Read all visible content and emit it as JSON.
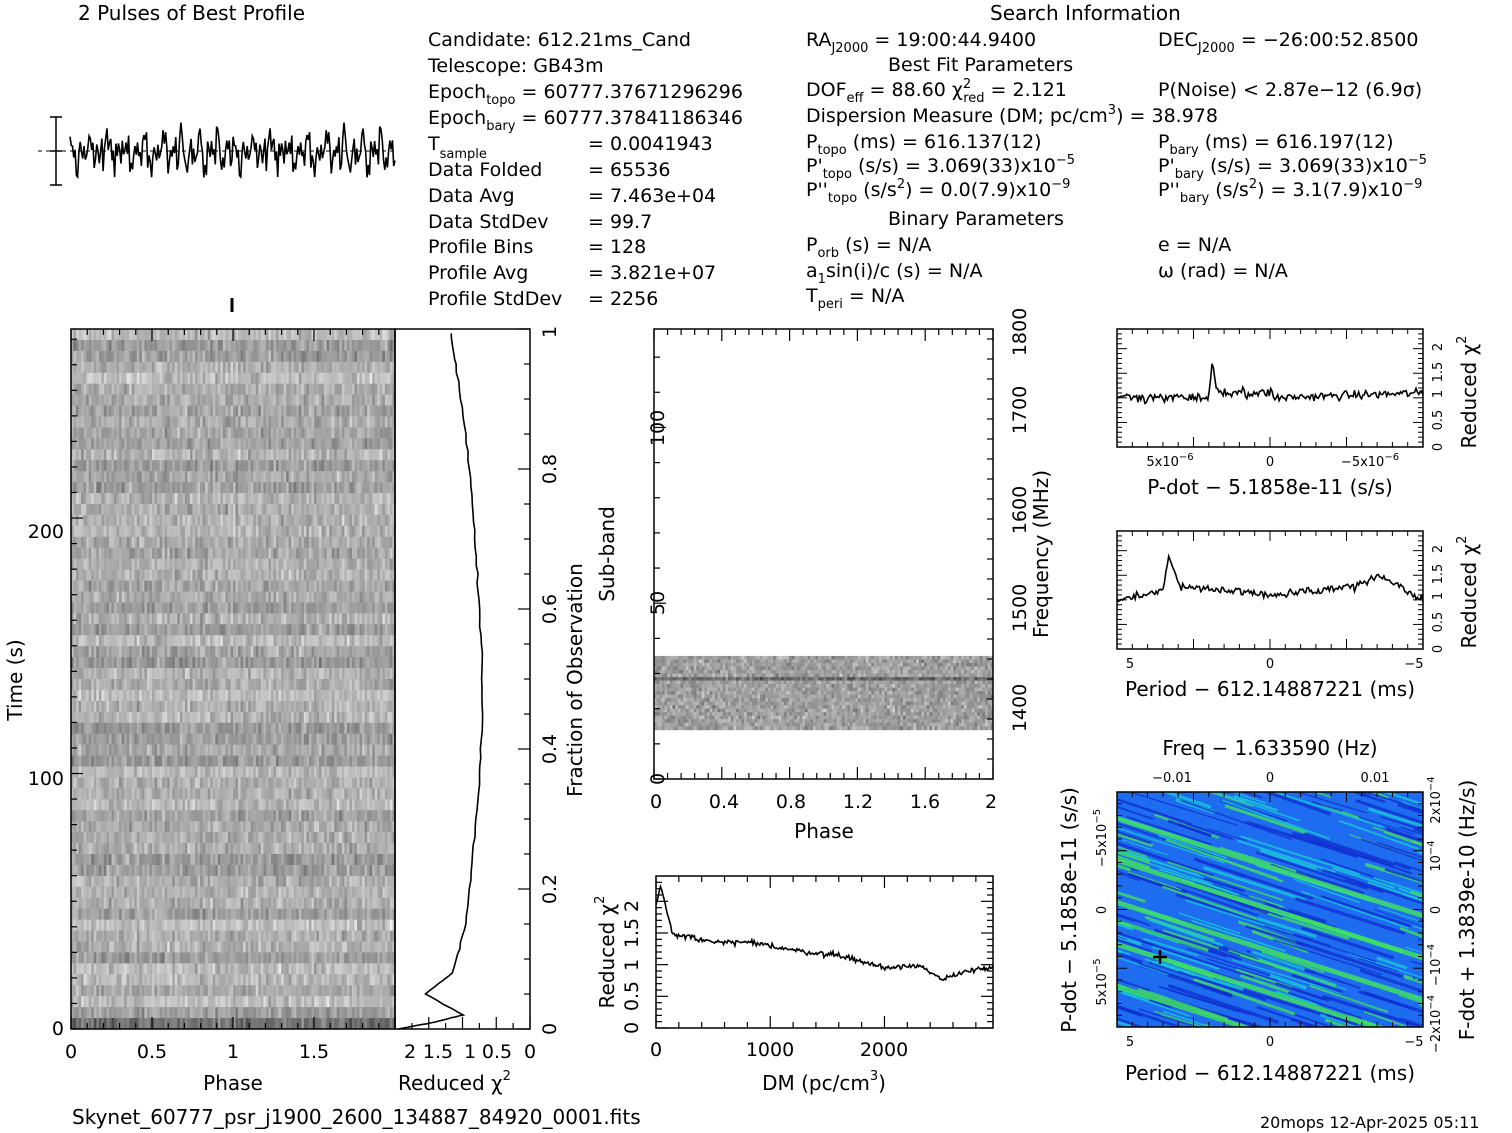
{
  "titles": {
    "profile": "2 Pulses of Best Profile",
    "search": "Search Information",
    "best_fit": "Best Fit Parameters",
    "binary": "Binary Parameters",
    "filename": "Skynet_60777_psr_j1900_2600_134887_84920_0001.fits",
    "footer": "20mops 12-Apr-2025 05:11"
  },
  "info": {
    "candidate": "Candidate:  612.21ms_Cand",
    "telescope": "Telescope:  GB43m",
    "epoch_topo_label": "Epoch",
    "epoch_topo_sub": "topo",
    "epoch_topo_val": " = 60777.37671296296",
    "epoch_bary_label": "Epoch",
    "epoch_bary_sub": "bary",
    "epoch_bary_val": " = 60777.37841186346",
    "tsample_label": "T",
    "tsample_sub": "sample",
    "tsample_val": "=  0.0041943",
    "data_folded_label": "Data Folded",
    "data_folded_val": "=  65536",
    "data_avg_label": "Data Avg",
    "data_avg_val": "=  7.463e+04",
    "data_std_label": "Data StdDev",
    "data_std_val": "=  99.7",
    "prof_bins_label": "Profile Bins",
    "prof_bins_val": "=  128",
    "prof_avg_label": "Profile Avg",
    "prof_avg_val": "=  3.821e+07",
    "prof_std_label": "Profile StdDev",
    "prof_std_val": "=  2256",
    "ra": "RA",
    "ra_sub": "J2000",
    "ra_val": " = 19:00:44.9400",
    "dec": "DEC",
    "dec_sub": "J2000",
    "dec_val": " = −26:00:52.8500",
    "dof": "DOF",
    "dof_sub": "eff",
    "dof_val": " = 88.60  χ",
    "chi_sup": "2",
    "chi_sub": "red",
    "chi_val": " = 2.121",
    "pnoise": "P(Noise) < 2.87e−12  (6.9σ)",
    "dm_text": "Dispersion Measure (DM; pc/cm",
    "dm_sup": "3",
    "dm_val": ") = 38.978",
    "ptopo": "P",
    "ptopo_sub": "topo",
    "ptopo_val": " (ms) =  616.137(12)",
    "pbary": "P",
    "pbary_sub": "bary",
    "pbary_val": " (ms) =  616.197(12)",
    "pdtopo": "P'",
    "pdtopo_sub": "topo",
    "pdtopo_val": " (s/s) =  3.069(33)x10",
    "pdtopo_exp": "−5",
    "pdbary": "P'",
    "pdbary_sub": "bary",
    "pdbary_val": " (s/s) =  3.069(33)x10",
    "pdbary_exp": "−5",
    "pddtopo": "P''",
    "pddtopo_sub": "topo",
    "pddtopo_val": " (s/s",
    "pddtopo_sup": "2",
    "pddtopo_val2": ") = 0.0(7.9)x10",
    "pddtopo_exp": "−9",
    "pddbary": "P''",
    "pddbary_sub": "bary",
    "pddbary_val": " (s/s",
    "pddbary_sup": "2",
    "pddbary_val2": ") =  3.1(7.9)x10",
    "pddbary_exp": "−9",
    "porb": "P",
    "porb_sub": "orb",
    "porb_val": " (s) = N/A",
    "ecc": "e = N/A",
    "a1": "a",
    "a1_sub": "1",
    "a1_val": "sin(i)/c (s) = N/A",
    "omega": "ω (rad) = N/A",
    "tperi": "T",
    "tperi_sub": "peri",
    "tperi_val": " = N/A"
  },
  "axes": {
    "phase": "Phase",
    "time": "Time (s)",
    "reduced_chi": "Reduced χ",
    "chi_sup": "2",
    "fraction": "Fraction of Observation",
    "subband": "Sub-band",
    "frequency": "Frequency (MHz)",
    "dm": "DM (pc/cm",
    "dm_sup": "3",
    "dm_close": ")",
    "pdot_label": "P-dot − 5.1858e-11 (s/s)",
    "period_label": "Period − 612.14887221 (ms)",
    "freq_label": "Freq − 1.633590 (Hz)",
    "fdot_label": "F-dot + 1.3839e-10 (Hz/s)",
    "pdot_side": "P-dot − 5.1858e-11 (s/s)"
  },
  "ticks": {
    "time_y": [
      "0",
      "100",
      "200"
    ],
    "phase_x": [
      "0",
      "0.5",
      "1",
      "1.5"
    ],
    "chi_x": [
      "2",
      "1.5",
      "1",
      "0.5",
      "0"
    ],
    "frac_y": [
      "0",
      "0.2",
      "0.4",
      "0.6",
      "0.8",
      "1"
    ],
    "sub_y": [
      "0",
      "50",
      "100"
    ],
    "sub_x": [
      "0",
      "0.4",
      "0.8",
      "1.2",
      "1.6",
      "2"
    ],
    "freq_y": [
      "1400",
      "1500",
      "1600",
      "1700",
      "1800"
    ],
    "dm_x": [
      "0",
      "1000",
      "2000"
    ],
    "chi_y": [
      "0",
      "0.5",
      "1",
      "1.5",
      "2"
    ],
    "pdot_x": [
      "5x10",
      "0",
      "−5x10"
    ],
    "pdot_x_exp": "−6",
    "period_x": [
      "5",
      "0",
      "−5"
    ],
    "freq_x": [
      "−0.01",
      "0",
      "0.01"
    ],
    "pdot_y": [
      "−5x10",
      "0",
      "5x10"
    ],
    "pdot_y_exp": "−5",
    "fdot_y": [
      "2x10",
      "10",
      "0",
      "−10",
      "−2x10"
    ],
    "fdot_y_exp": "−4"
  },
  "chart_data": [
    {
      "type": "line",
      "title": "2 Pulses of Best Profile",
      "x": "phase 0–2 (2 pulses)",
      "noise_level": "profile noise-like, error bar at left"
    },
    {
      "type": "heatmap",
      "xlabel": "Phase",
      "ylabel": "Time (s)",
      "xlim": [
        0,
        2
      ],
      "ylim": [
        0,
        270
      ]
    },
    {
      "type": "line",
      "xlabel": "Reduced χ2",
      "ylabel": "Fraction of Observation",
      "xlim": [
        2,
        0
      ],
      "ylim": [
        0,
        1
      ],
      "points": [
        [
          1.95,
          0.0
        ],
        [
          1.4,
          0.01
        ],
        [
          1.0,
          0.02
        ],
        [
          1.55,
          0.05
        ],
        [
          1.15,
          0.08
        ],
        [
          0.95,
          0.15
        ],
        [
          0.85,
          0.25
        ],
        [
          0.75,
          0.35
        ],
        [
          0.7,
          0.45
        ],
        [
          0.72,
          0.55
        ],
        [
          0.78,
          0.65
        ],
        [
          0.85,
          0.75
        ],
        [
          0.95,
          0.85
        ],
        [
          1.1,
          0.95
        ],
        [
          1.18,
          1.0
        ]
      ]
    },
    {
      "type": "heatmap",
      "xlabel": "Phase",
      "ylabel": "Sub-band",
      "xlim": [
        0,
        2
      ],
      "ylim": [
        0,
        128
      ],
      "active_subbands": [
        14,
        35
      ],
      "y2label": "Frequency (MHz)",
      "y2lim": [
        1350,
        1800
      ]
    },
    {
      "type": "line",
      "xlabel": "DM (pc/cm3)",
      "ylabel": "Reduced χ2",
      "xlim": [
        0,
        2950
      ],
      "ylim": [
        0,
        2.4
      ],
      "points": [
        [
          0,
          1.95
        ],
        [
          40,
          2.25
        ],
        [
          150,
          1.45
        ],
        [
          300,
          1.45
        ],
        [
          500,
          1.35
        ],
        [
          800,
          1.35
        ],
        [
          1000,
          1.3
        ],
        [
          1300,
          1.2
        ],
        [
          1600,
          1.15
        ],
        [
          1800,
          1.05
        ],
        [
          2000,
          0.95
        ],
        [
          2300,
          1.0
        ],
        [
          2500,
          0.75
        ],
        [
          2700,
          0.9
        ],
        [
          2950,
          0.95
        ]
      ]
    },
    {
      "type": "line",
      "xlabel": "P-dot − 5.1858e-11 (s/s)",
      "ylabel": "Reduced χ2",
      "ylim": [
        0,
        2.4
      ]
    },
    {
      "type": "line",
      "xlabel": "Period − 612.14887221 (ms)",
      "ylabel": "Reduced χ2",
      "xlim": [
        5.2,
        -5.2
      ],
      "ylim": [
        0,
        2.4
      ]
    },
    {
      "type": "heatmap",
      "xlabel": "Period − 612.14887221 (ms)",
      "ylabel": "P-dot − 5.1858e-11 (s/s)",
      "x2label": "Freq − 1.633590 (Hz)",
      "y2label": "F-dot + 1.3839e-10 (Hz/s)",
      "best_fit_marker": [
        4.0,
        3.5e-06
      ],
      "colors": [
        "#1030d0",
        "#1e6cf0",
        "#18c8d8",
        "#40e060"
      ]
    }
  ]
}
